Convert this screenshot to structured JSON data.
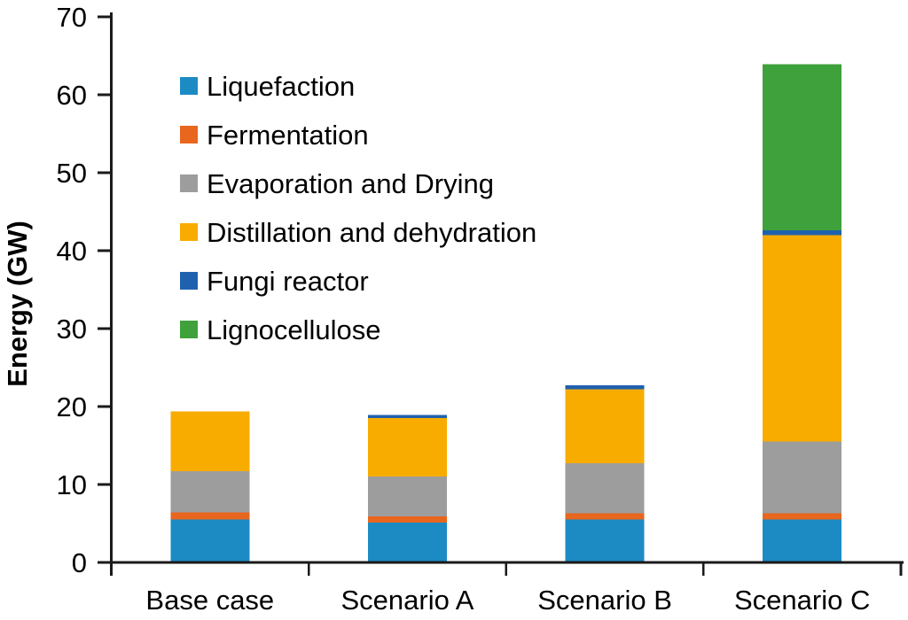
{
  "chart_data": {
    "type": "bar",
    "stacked": true,
    "title": "",
    "xlabel": "",
    "ylabel": "Energy (GW)",
    "ylim": [
      0,
      70
    ],
    "ytick_step": 10,
    "grid": false,
    "legend_position": "top-left-inside",
    "categories": [
      "Base case",
      "Scenario A",
      "Scenario B",
      "Scenario C"
    ],
    "series": [
      {
        "name": "Liquefaction",
        "color": "#1C8BC4",
        "values": [
          5.5,
          5.1,
          5.5,
          5.5
        ]
      },
      {
        "name": "Fermentation",
        "color": "#E8661E",
        "values": [
          0.9,
          0.8,
          0.8,
          0.8
        ]
      },
      {
        "name": "Evaporation and Drying",
        "color": "#9D9D9D",
        "values": [
          5.3,
          5.1,
          6.4,
          9.2
        ]
      },
      {
        "name": "Distillation and dehydration",
        "color": "#F8AC00",
        "values": [
          7.7,
          7.5,
          9.5,
          26.5
        ]
      },
      {
        "name": "Fungi reactor",
        "color": "#2061AE",
        "values": [
          0,
          0.4,
          0.5,
          0.6
        ]
      },
      {
        "name": "Lignocellulose",
        "color": "#3FA13B",
        "values": [
          0,
          0,
          0,
          21.3
        ]
      }
    ],
    "axis_color": "#1a1a1a",
    "text_color": "#000000"
  }
}
